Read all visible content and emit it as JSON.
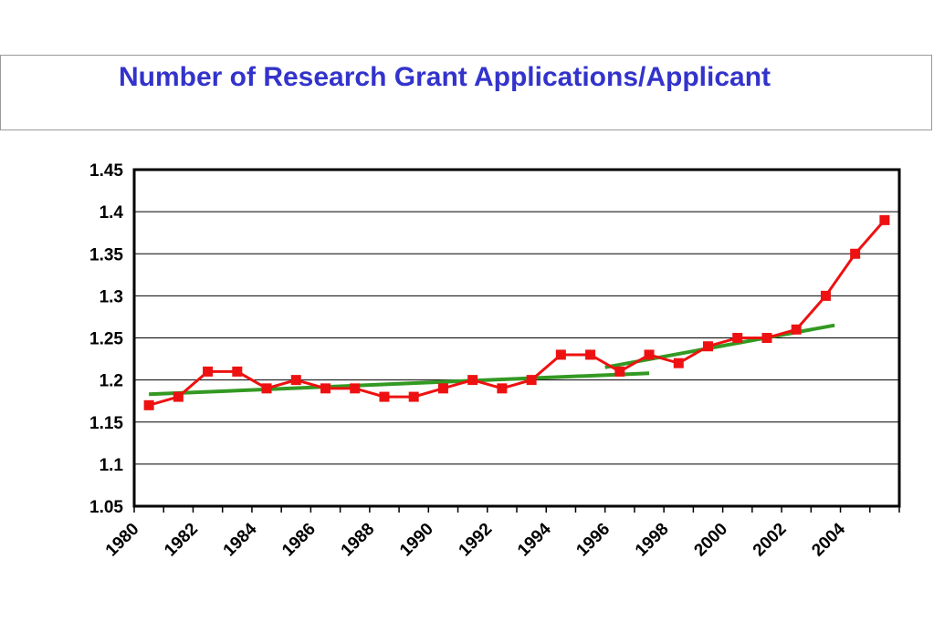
{
  "chart_data": {
    "type": "line",
    "title": "Number of Research Grant Applications/Applicant",
    "xlabel": "",
    "ylabel": "",
    "ylim": [
      1.05,
      1.45
    ],
    "yticks": [
      1.05,
      1.1,
      1.15,
      1.2,
      1.25,
      1.3,
      1.35,
      1.4,
      1.45
    ],
    "ytick_labels": [
      "1.05",
      "1.1",
      "1.15",
      "1.2",
      "1.25",
      "1.3",
      "1.35",
      "1.4",
      "1.45"
    ],
    "xlim": [
      1980,
      2006
    ],
    "xtick_labels": [
      "1980",
      "1982",
      "1984",
      "1986",
      "1988",
      "1990",
      "1992",
      "1994",
      "1996",
      "1998",
      "2000",
      "2002",
      "2004"
    ],
    "grid": "horizontal",
    "series": [
      {
        "color": "#ee1111",
        "marker": "square",
        "x": [
          1980,
          1981,
          1982,
          1983,
          1984,
          1985,
          1986,
          1987,
          1988,
          1989,
          1990,
          1991,
          1992,
          1993,
          1994,
          1995,
          1996,
          1997,
          1998,
          1999,
          2000,
          2001,
          2002,
          2003,
          2004,
          2005
        ],
        "values": [
          1.17,
          1.18,
          1.21,
          1.21,
          1.19,
          1.2,
          1.19,
          1.19,
          1.18,
          1.18,
          1.19,
          1.2,
          1.19,
          1.2,
          1.23,
          1.23,
          1.21,
          1.23,
          1.22,
          1.24,
          1.25,
          1.25,
          1.26,
          1.3,
          1.35,
          1.39
        ]
      }
    ],
    "trendlines": [
      {
        "color": "#339922",
        "x": [
          1980,
          1997
        ],
        "values": [
          1.183,
          1.208
        ]
      },
      {
        "color": "#339922",
        "x": [
          1995.5,
          2003.3
        ],
        "values": [
          1.215,
          1.265
        ]
      }
    ]
  }
}
